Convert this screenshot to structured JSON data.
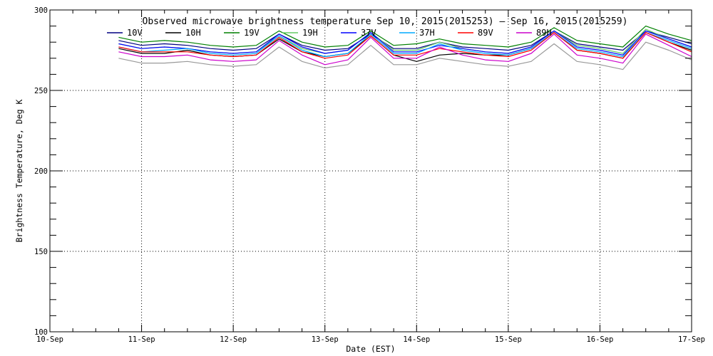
{
  "chart_data": {
    "type": "line",
    "title": "Observed microwave brightness temperature Sep 10, 2015(2015253) — Sep 16, 2015(2015259)",
    "xlabel": "Date (EST)",
    "ylabel": "Brightness Temperature, Deg K",
    "xlim": [
      0,
      7
    ],
    "ylim": [
      100,
      300
    ],
    "grid": true,
    "legend_position": "top",
    "x_tick_values": [
      0,
      1,
      2,
      3,
      4,
      5,
      6,
      7
    ],
    "x_tick_labels": [
      "10-Sep",
      "11-Sep",
      "12-Sep",
      "13-Sep",
      "14-Sep",
      "15-Sep",
      "16-Sep",
      "17-Sep"
    ],
    "y_tick_values": [
      100,
      150,
      200,
      250,
      300
    ],
    "y_tick_labels": [
      "100",
      "150",
      "200",
      "250",
      "300"
    ],
    "x": [
      0.75,
      1.0,
      1.25,
      1.5,
      1.75,
      2.0,
      2.25,
      2.5,
      2.75,
      3.0,
      3.25,
      3.5,
      3.75,
      4.0,
      4.25,
      4.5,
      4.75,
      5.0,
      5.25,
      5.5,
      5.75,
      6.0,
      6.25,
      6.5,
      6.75,
      7.0
    ],
    "series": [
      {
        "name": "10V",
        "color": "#000080",
        "values": [
          281,
          278,
          279,
          278,
          276,
          275,
          276,
          285,
          278,
          275,
          276,
          285,
          276,
          276,
          280,
          277,
          276,
          275,
          278,
          287,
          279,
          277,
          275,
          287,
          283,
          279
        ]
      },
      {
        "name": "10H",
        "color": "#000000",
        "values": [
          276,
          273,
          273,
          275,
          272,
          271,
          272,
          282,
          274,
          271,
          273,
          284,
          272,
          268,
          272,
          273,
          272,
          272,
          276,
          286,
          275,
          273,
          270,
          286,
          280,
          275
        ]
      },
      {
        "name": "19V",
        "color": "#008000",
        "values": [
          283,
          280,
          281,
          280,
          278,
          277,
          278,
          287,
          280,
          277,
          278,
          287,
          278,
          279,
          282,
          279,
          278,
          277,
          280,
          289,
          281,
          279,
          277,
          290,
          285,
          281
        ]
      },
      {
        "name": "19H",
        "color": "#66cc66",
        "values": [
          279,
          276,
          277,
          276,
          274,
          273,
          274,
          284,
          276,
          273,
          275,
          286,
          275,
          275,
          280,
          276,
          274,
          273,
          277,
          287,
          278,
          276,
          273,
          288,
          282,
          277
        ]
      },
      {
        "name": "37V",
        "color": "#0000ff",
        "values": [
          279,
          276,
          277,
          276,
          274,
          273,
          274,
          285,
          277,
          273,
          275,
          286,
          274,
          274,
          278,
          276,
          274,
          273,
          277,
          287,
          277,
          275,
          272,
          287,
          282,
          277
        ]
      },
      {
        "name": "37H",
        "color": "#00aaff",
        "values": [
          277,
          274,
          275,
          276,
          273,
          272,
          273,
          284,
          275,
          271,
          273,
          285,
          273,
          273,
          279,
          275,
          273,
          272,
          276,
          286,
          276,
          274,
          271,
          286,
          281,
          276
        ]
      },
      {
        "name": "89V",
        "color": "#ff0000",
        "values": [
          277,
          274,
          274,
          274,
          272,
          271,
          272,
          283,
          274,
          270,
          272,
          284,
          272,
          272,
          276,
          274,
          272,
          271,
          275,
          286,
          275,
          273,
          270,
          286,
          280,
          274
        ]
      },
      {
        "name": "89H",
        "color": "#cc00cc",
        "values": [
          274,
          271,
          271,
          272,
          269,
          268,
          269,
          281,
          272,
          266,
          269,
          283,
          270,
          270,
          277,
          272,
          269,
          268,
          273,
          285,
          272,
          270,
          267,
          285,
          278,
          271
        ]
      },
      {
        "name": "",
        "color": "#999999",
        "values": [
          270,
          267,
          267,
          268,
          266,
          265,
          266,
          277,
          268,
          264,
          266,
          278,
          266,
          266,
          270,
          268,
          266,
          265,
          268,
          279,
          268,
          266,
          263,
          280,
          275,
          269
        ]
      }
    ]
  }
}
